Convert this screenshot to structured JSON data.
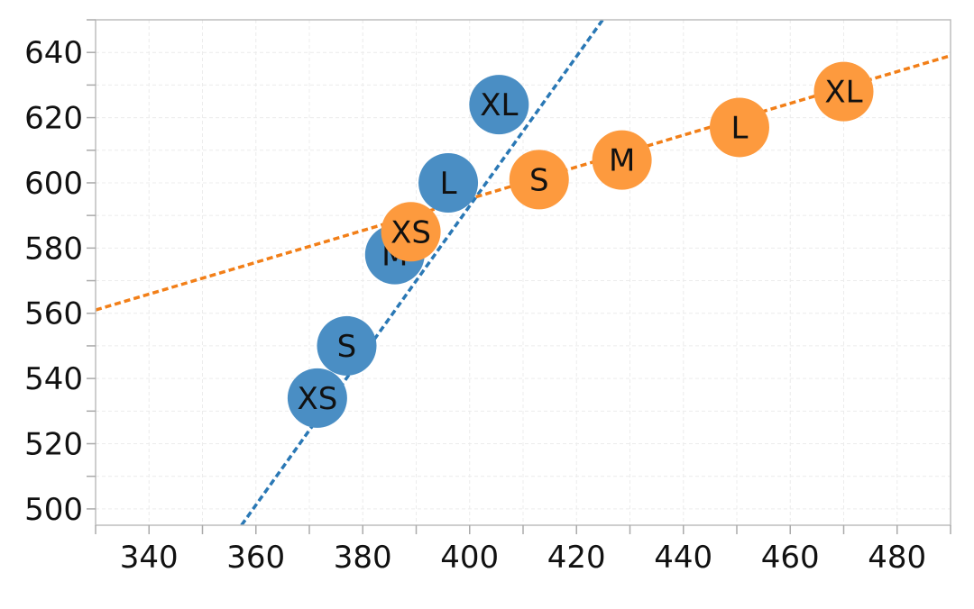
{
  "chart_data": {
    "type": "scatter",
    "title": "",
    "xlabel": "",
    "ylabel": "",
    "xlim": [
      330,
      490
    ],
    "ylim": [
      495,
      650
    ],
    "x_ticks": [
      340,
      360,
      380,
      400,
      420,
      440,
      460,
      480
    ],
    "y_ticks": [
      500,
      520,
      540,
      560,
      580,
      600,
      620,
      640
    ],
    "x_tick_labels": [
      "340",
      "360",
      "380",
      "400",
      "420",
      "440",
      "460",
      "480"
    ],
    "y_tick_labels": [
      "500",
      "520",
      "540",
      "560",
      "580",
      "600",
      "620",
      "640"
    ],
    "grid": true,
    "legend": "none",
    "series": [
      {
        "color": "#4a8ec4",
        "trendline_color": "#2a78b5",
        "trendline": {
          "x": [
            357.3,
            424.9
          ],
          "y": [
            495,
            650
          ]
        },
        "points": [
          {
            "label": "XS",
            "x": 371.5,
            "y": 534
          },
          {
            "label": "S",
            "x": 377,
            "y": 550
          },
          {
            "label": "M",
            "x": 386,
            "y": 578
          },
          {
            "label": "L",
            "x": 396,
            "y": 600
          },
          {
            "label": "XL",
            "x": 405.5,
            "y": 624
          }
        ]
      },
      {
        "color": "#fd9a3e",
        "trendline_color": "#f27f18",
        "trendline": {
          "x": [
            330,
            490
          ],
          "y": [
            561,
            639
          ]
        },
        "points": [
          {
            "label": "XS",
            "x": 389,
            "y": 585
          },
          {
            "label": "S",
            "x": 413,
            "y": 601
          },
          {
            "label": "M",
            "x": 428.5,
            "y": 607
          },
          {
            "label": "L",
            "x": 450.5,
            "y": 617
          },
          {
            "label": "XL",
            "x": 470,
            "y": 628
          }
        ]
      }
    ]
  }
}
